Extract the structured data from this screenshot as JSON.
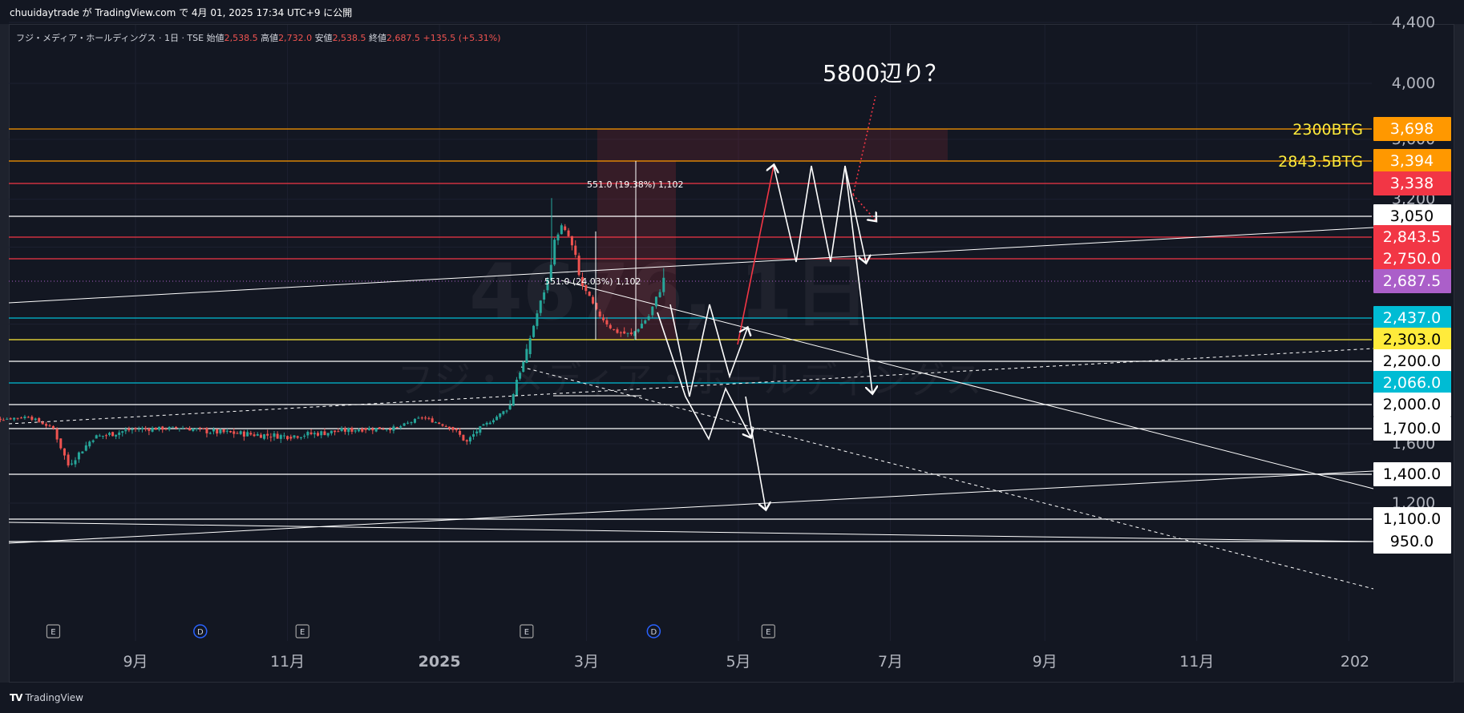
{
  "publish_line": "chuuidaytrade が TradingView.com で 4月 01, 2025 17:34 UTC+9 に公開",
  "footer_brand": "TradingView",
  "watermark": {
    "symbol": "4676, 1日",
    "name": "フジ・メディア・ホールディングス"
  },
  "colors": {
    "background": "#131722",
    "grid": "#1c2030",
    "up": "#26a69a",
    "down": "#ef5350",
    "white": "#ffffff",
    "orange": "#ff9800",
    "yellow": "#ffeb3b",
    "cyan": "#00bcd4",
    "red": "#f23645",
    "purple": "#ab5fc9"
  },
  "chart_data": {
    "type": "candlestick",
    "title": "フジ・メディア・ホールディングス · 1日 · TSE",
    "ohlc_legend": [
      {
        "label": "始値",
        "value": "2,538.5"
      },
      {
        "label": "高値",
        "value": "2,732.0"
      },
      {
        "label": "安値",
        "value": "2,538.5"
      },
      {
        "label": "終値",
        "value": "2,687.5"
      },
      {
        "label": "",
        "value": "+135.5 (+5.31%)"
      }
    ],
    "y_axis_ticks": [
      "4,400",
      "4,000",
      "3,600",
      "3,200",
      "1,600",
      "1,200"
    ],
    "x_axis_ticks": [
      "9月",
      "11月",
      "2025",
      "3月",
      "5月",
      "7月",
      "9月",
      "11月",
      "202"
    ],
    "price_levels": [
      {
        "value": 3698,
        "label": "3,698",
        "note": "2300BTG",
        "color": "orange"
      },
      {
        "value": 3394,
        "label": "3,394",
        "note": "2843.5BTG",
        "color": "orange"
      },
      {
        "value": 3338,
        "label": "3,338",
        "note": "",
        "color": "red"
      },
      {
        "value": 3050,
        "label": "3,050",
        "note": "",
        "color": "white"
      },
      {
        "value": 2843.5,
        "label": "2,843.5",
        "note": "",
        "color": "red"
      },
      {
        "value": 2750,
        "label": "2,750.0",
        "note": "",
        "color": "red"
      },
      {
        "value": 2687.5,
        "label": "2,687.5",
        "note": "",
        "color": "purple"
      },
      {
        "value": 2437,
        "label": "2,437.0",
        "note": "",
        "color": "cyan"
      },
      {
        "value": 2303,
        "label": "2,303.0",
        "note": "",
        "color": "yellow"
      },
      {
        "value": 2200,
        "label": "2,200.0",
        "note": "",
        "color": "white"
      },
      {
        "value": 2066,
        "label": "2,066.0",
        "note": "",
        "color": "cyan"
      },
      {
        "value": 2000,
        "label": "2,000.0",
        "note": "",
        "color": "white"
      },
      {
        "value": 1700,
        "label": "1,700.0",
        "note": "",
        "color": "white"
      },
      {
        "value": 1400,
        "label": "1,400.0",
        "note": "",
        "color": "white"
      },
      {
        "value": 1100,
        "label": "1,100.0",
        "note": "",
        "color": "white"
      },
      {
        "value": 950,
        "label": "950.0",
        "note": "",
        "color": "white"
      }
    ],
    "annotations": [
      {
        "text": "5800辺り？"
      },
      {
        "text": "551.0 (19.38%) 1,102"
      },
      {
        "text": "551.0 (24.03%) 1,102"
      }
    ],
    "event_markers": [
      {
        "date": "2024-07-30",
        "label": "E"
      },
      {
        "date": "2024-09-27",
        "label": "D"
      },
      {
        "date": "2024-11-07",
        "label": "E"
      },
      {
        "date": "2025-02-05",
        "label": "E"
      },
      {
        "date": "2025-03-28",
        "label": "D"
      },
      {
        "date": "2025-05-13",
        "label": "E"
      }
    ],
    "price_series": [
      [
        "2024-07-01",
        1830
      ],
      [
        "2024-07-10",
        1820
      ],
      [
        "2024-07-20",
        1850
      ],
      [
        "2024-07-30",
        1700
      ],
      [
        "2024-08-05",
        1460
      ],
      [
        "2024-08-15",
        1640
      ],
      [
        "2024-09-01",
        1700
      ],
      [
        "2024-09-20",
        1710
      ],
      [
        "2024-10-01",
        1680
      ],
      [
        "2024-10-20",
        1660
      ],
      [
        "2024-11-01",
        1650
      ],
      [
        "2024-11-20",
        1680
      ],
      [
        "2024-12-01",
        1700
      ],
      [
        "2024-12-15",
        1710
      ],
      [
        "2024-12-25",
        1840
      ],
      [
        "2025-01-05",
        1720
      ],
      [
        "2025-01-12",
        1610
      ],
      [
        "2025-01-20",
        1760
      ],
      [
        "2025-01-28",
        1940
      ],
      [
        "2025-02-05",
        2240
      ],
      [
        "2025-02-12",
        2620
      ],
      [
        "2025-02-19",
        2950
      ],
      [
        "2025-02-26",
        2700
      ],
      [
        "2025-03-05",
        2480
      ],
      [
        "2025-03-12",
        2360
      ],
      [
        "2025-03-19",
        2330
      ],
      [
        "2025-03-26",
        2450
      ],
      [
        "2025-04-01",
        2687.5
      ]
    ]
  }
}
